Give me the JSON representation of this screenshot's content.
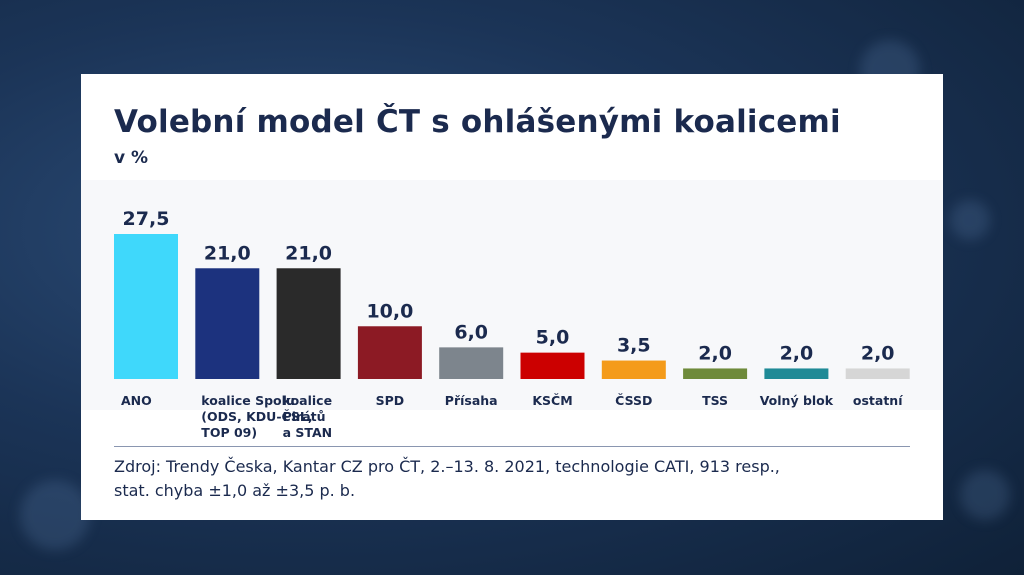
{
  "title": "Volební model ČT s ohlášenými koalicemi",
  "unit": "v %",
  "source": {
    "line1": "Zdroj: Trendy Česka, Kantar CZ pro ČT, 2.–13. 8. 2021, technologie CATI, 913 resp.,",
    "line2": "stat. chyba ±1,0 až ±3,5 p. b."
  },
  "chart_data": {
    "type": "bar",
    "title": "Volební model ČT s ohlášenými koalicemi",
    "ylabel": "v %",
    "xlabel": "",
    "ylim": [
      0,
      27.5
    ],
    "grid": false,
    "categories": [
      [
        "ANO"
      ],
      [
        "koalice Spolu",
        "(ODS, KDU-ČSL,",
        "TOP 09)"
      ],
      [
        "koalice",
        "Pirátů",
        "a STAN"
      ],
      [
        "SPD"
      ],
      [
        "Přísaha"
      ],
      [
        "KSČM"
      ],
      [
        "ČSSD"
      ],
      [
        "TSS"
      ],
      [
        "Volný blok"
      ],
      [
        "ostatní"
      ]
    ],
    "values": [
      27.5,
      21.0,
      21.0,
      10.0,
      6.0,
      5.0,
      3.5,
      2.0,
      2.0,
      2.0
    ],
    "value_labels": [
      "27,5",
      "21,0",
      "21,0",
      "10,0",
      "6,0",
      "5,0",
      "3,5",
      "2,0",
      "2,0",
      "2,0"
    ],
    "colors": [
      "#3fd8fb",
      "#1c327e",
      "#2a2a2a",
      "#8c1a24",
      "#7d858d",
      "#cc0000",
      "#f49b1a",
      "#6e8a3a",
      "#1f8a96",
      "#d6d6d6"
    ]
  }
}
